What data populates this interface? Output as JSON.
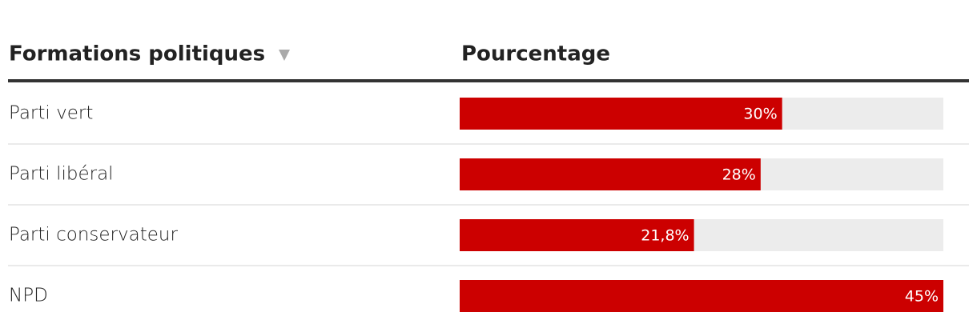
{
  "chart_data": {
    "type": "bar",
    "orientation": "horizontal",
    "category_header": "Formations politiques",
    "value_header": "Pourcentage",
    "categories": [
      "Parti vert",
      "Parti libéral",
      "Parti conservateur",
      "NPD"
    ],
    "values": [
      30,
      28,
      21.8,
      45
    ],
    "value_labels": [
      "30%",
      "28%",
      "21,8%",
      "45%"
    ],
    "color": "#cc0000",
    "track_color": "#ececec"
  }
}
